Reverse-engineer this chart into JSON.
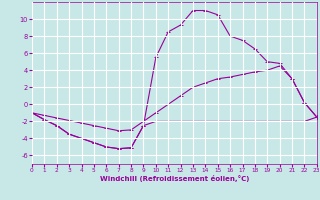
{
  "background_color": "#c8e8e8",
  "grid_color": "#ffffff",
  "line_color": "#990099",
  "xlim": [
    0,
    23
  ],
  "ylim": [
    -7,
    12
  ],
  "xlabel": "Windchill (Refroidissement éolien,°C)",
  "xticks": [
    0,
    1,
    2,
    3,
    4,
    5,
    6,
    7,
    8,
    9,
    10,
    11,
    12,
    13,
    14,
    15,
    16,
    17,
    18,
    19,
    20,
    21,
    22,
    23
  ],
  "yticks": [
    -6,
    -4,
    -2,
    0,
    2,
    4,
    6,
    8,
    10
  ],
  "series1_x": [
    0,
    1,
    2,
    3,
    4,
    5,
    6,
    7,
    8,
    9,
    10,
    11,
    12,
    13,
    14,
    15,
    16,
    17,
    18,
    19,
    20,
    21,
    22,
    23
  ],
  "series1_y": [
    -1,
    -1.8,
    -2.5,
    -3.5,
    -4,
    -4.5,
    -5,
    -5.2,
    -5.1,
    -2.5,
    -2,
    -2,
    -2,
    -2,
    -2,
    -2,
    -2,
    -2,
    -2,
    -2,
    -2,
    -2,
    -2,
    -1.5
  ],
  "series2_x": [
    0,
    1,
    2,
    3,
    4,
    5,
    6,
    7,
    8,
    9,
    10,
    11,
    12,
    13,
    14,
    15,
    16,
    17,
    18,
    19,
    20,
    21,
    22,
    23
  ],
  "series2_y": [
    -1,
    -1.8,
    -2.5,
    -3.5,
    -4,
    -4.5,
    -5,
    -5.2,
    -5.1,
    -2.5,
    5.5,
    8.5,
    9.3,
    11,
    11,
    10.5,
    8,
    7.5,
    6.5,
    5,
    4.8,
    3,
    0.2,
    -1.5
  ],
  "series3_x": [
    0,
    1,
    2,
    3,
    4,
    5,
    6,
    7,
    8,
    9,
    10,
    11,
    12,
    13,
    14,
    15,
    16,
    17,
    18,
    19,
    20,
    21,
    22,
    23
  ],
  "series3_y": [
    -1,
    -1.3,
    -1.6,
    -1.9,
    -2.2,
    -2.5,
    -2.8,
    -3.1,
    -3.0,
    -2.0,
    -1.0,
    0.0,
    1.0,
    2.0,
    2.5,
    3.0,
    3.2,
    3.5,
    3.8,
    4.0,
    4.5,
    3.0,
    0.2,
    -1.5
  ]
}
